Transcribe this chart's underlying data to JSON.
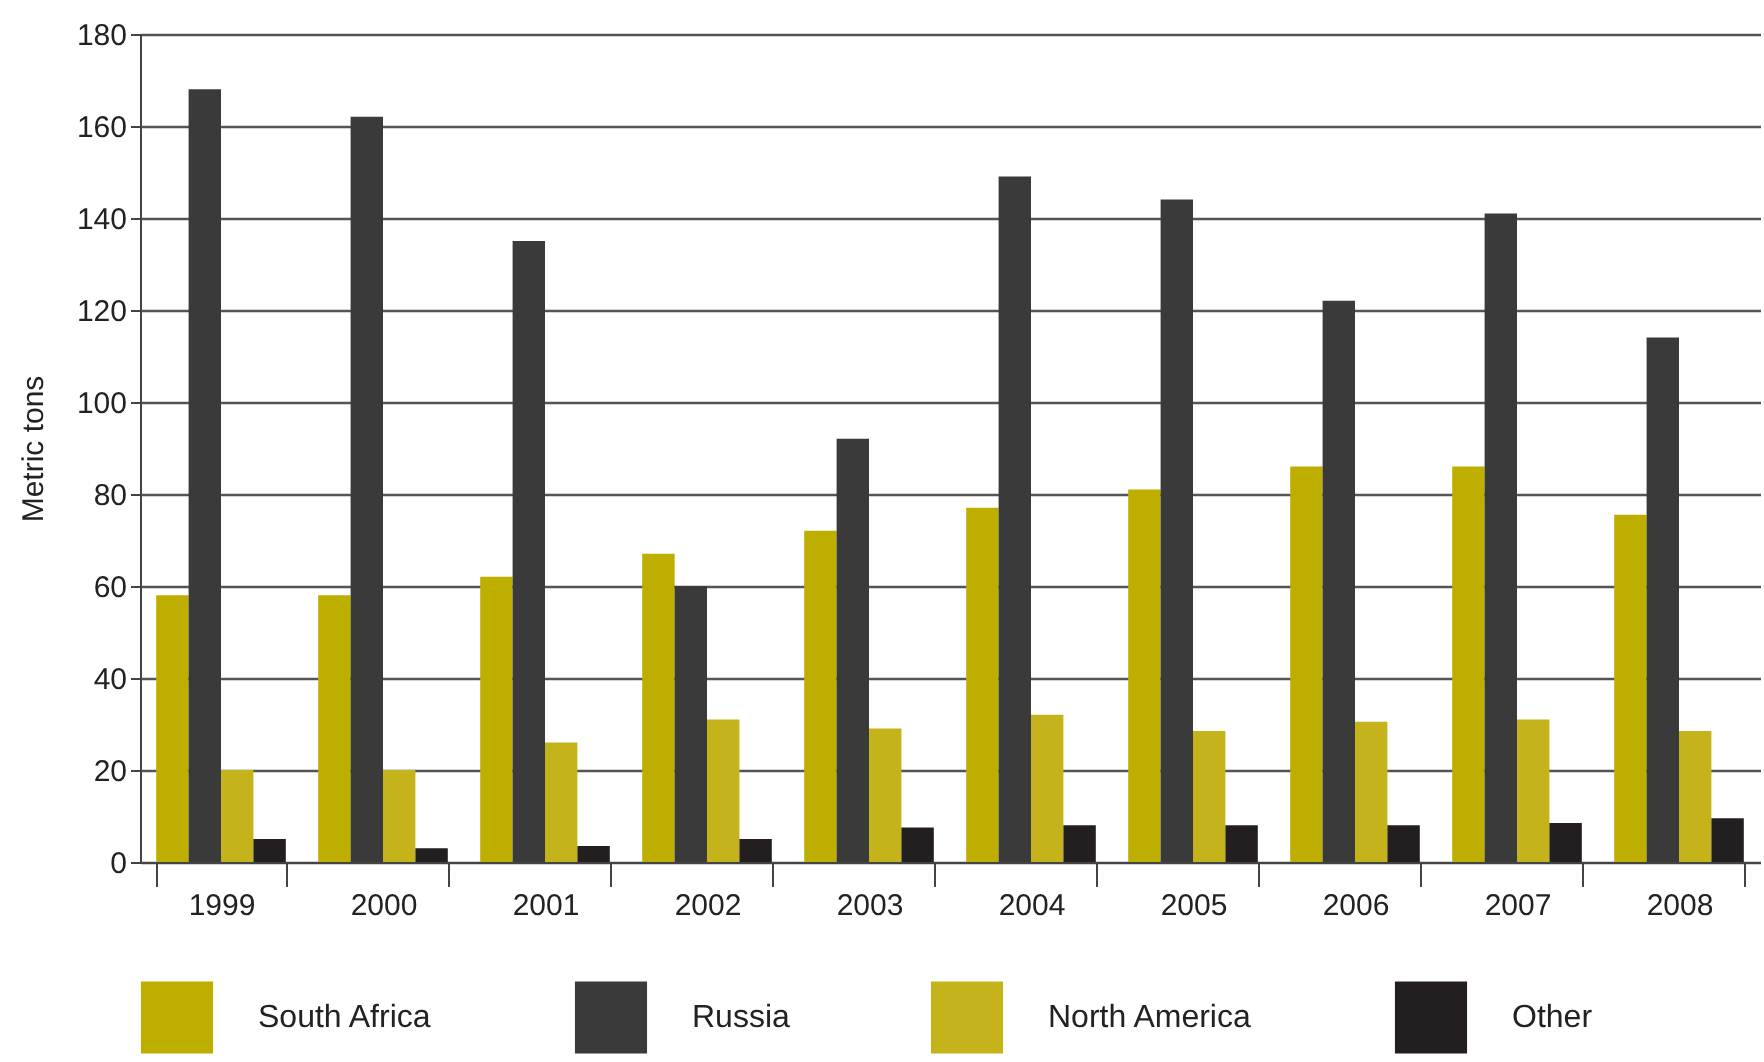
{
  "chart_data": {
    "type": "bar",
    "ylabel": "Metric tons",
    "categories": [
      "1999",
      "2000",
      "2001",
      "2002",
      "2003",
      "2004",
      "2005",
      "2006",
      "2007",
      "2008"
    ],
    "series": [
      {
        "name": "South Africa",
        "color": "#bdae00",
        "values": [
          58,
          58,
          62,
          67,
          72,
          77,
          81,
          86,
          86,
          75.5
        ]
      },
      {
        "name": "Russia",
        "color": "#3a3a3a",
        "values": [
          168,
          162,
          135,
          60,
          92,
          149,
          144,
          122,
          141,
          114
        ]
      },
      {
        "name": "North America",
        "color": "#c4b31a",
        "values": [
          20,
          20,
          26,
          31,
          29,
          32,
          28.5,
          30.5,
          31,
          28.5
        ]
      },
      {
        "name": "Other",
        "color": "#231f20",
        "values": [
          5,
          3,
          3.5,
          5,
          7.5,
          8,
          8,
          8,
          8.5,
          9.5
        ]
      }
    ],
    "ylim": [
      0,
      180
    ],
    "yticks": [
      0,
      20,
      40,
      60,
      80,
      100,
      120,
      140,
      160,
      180
    ],
    "grid": "y",
    "legend": "bottom"
  }
}
